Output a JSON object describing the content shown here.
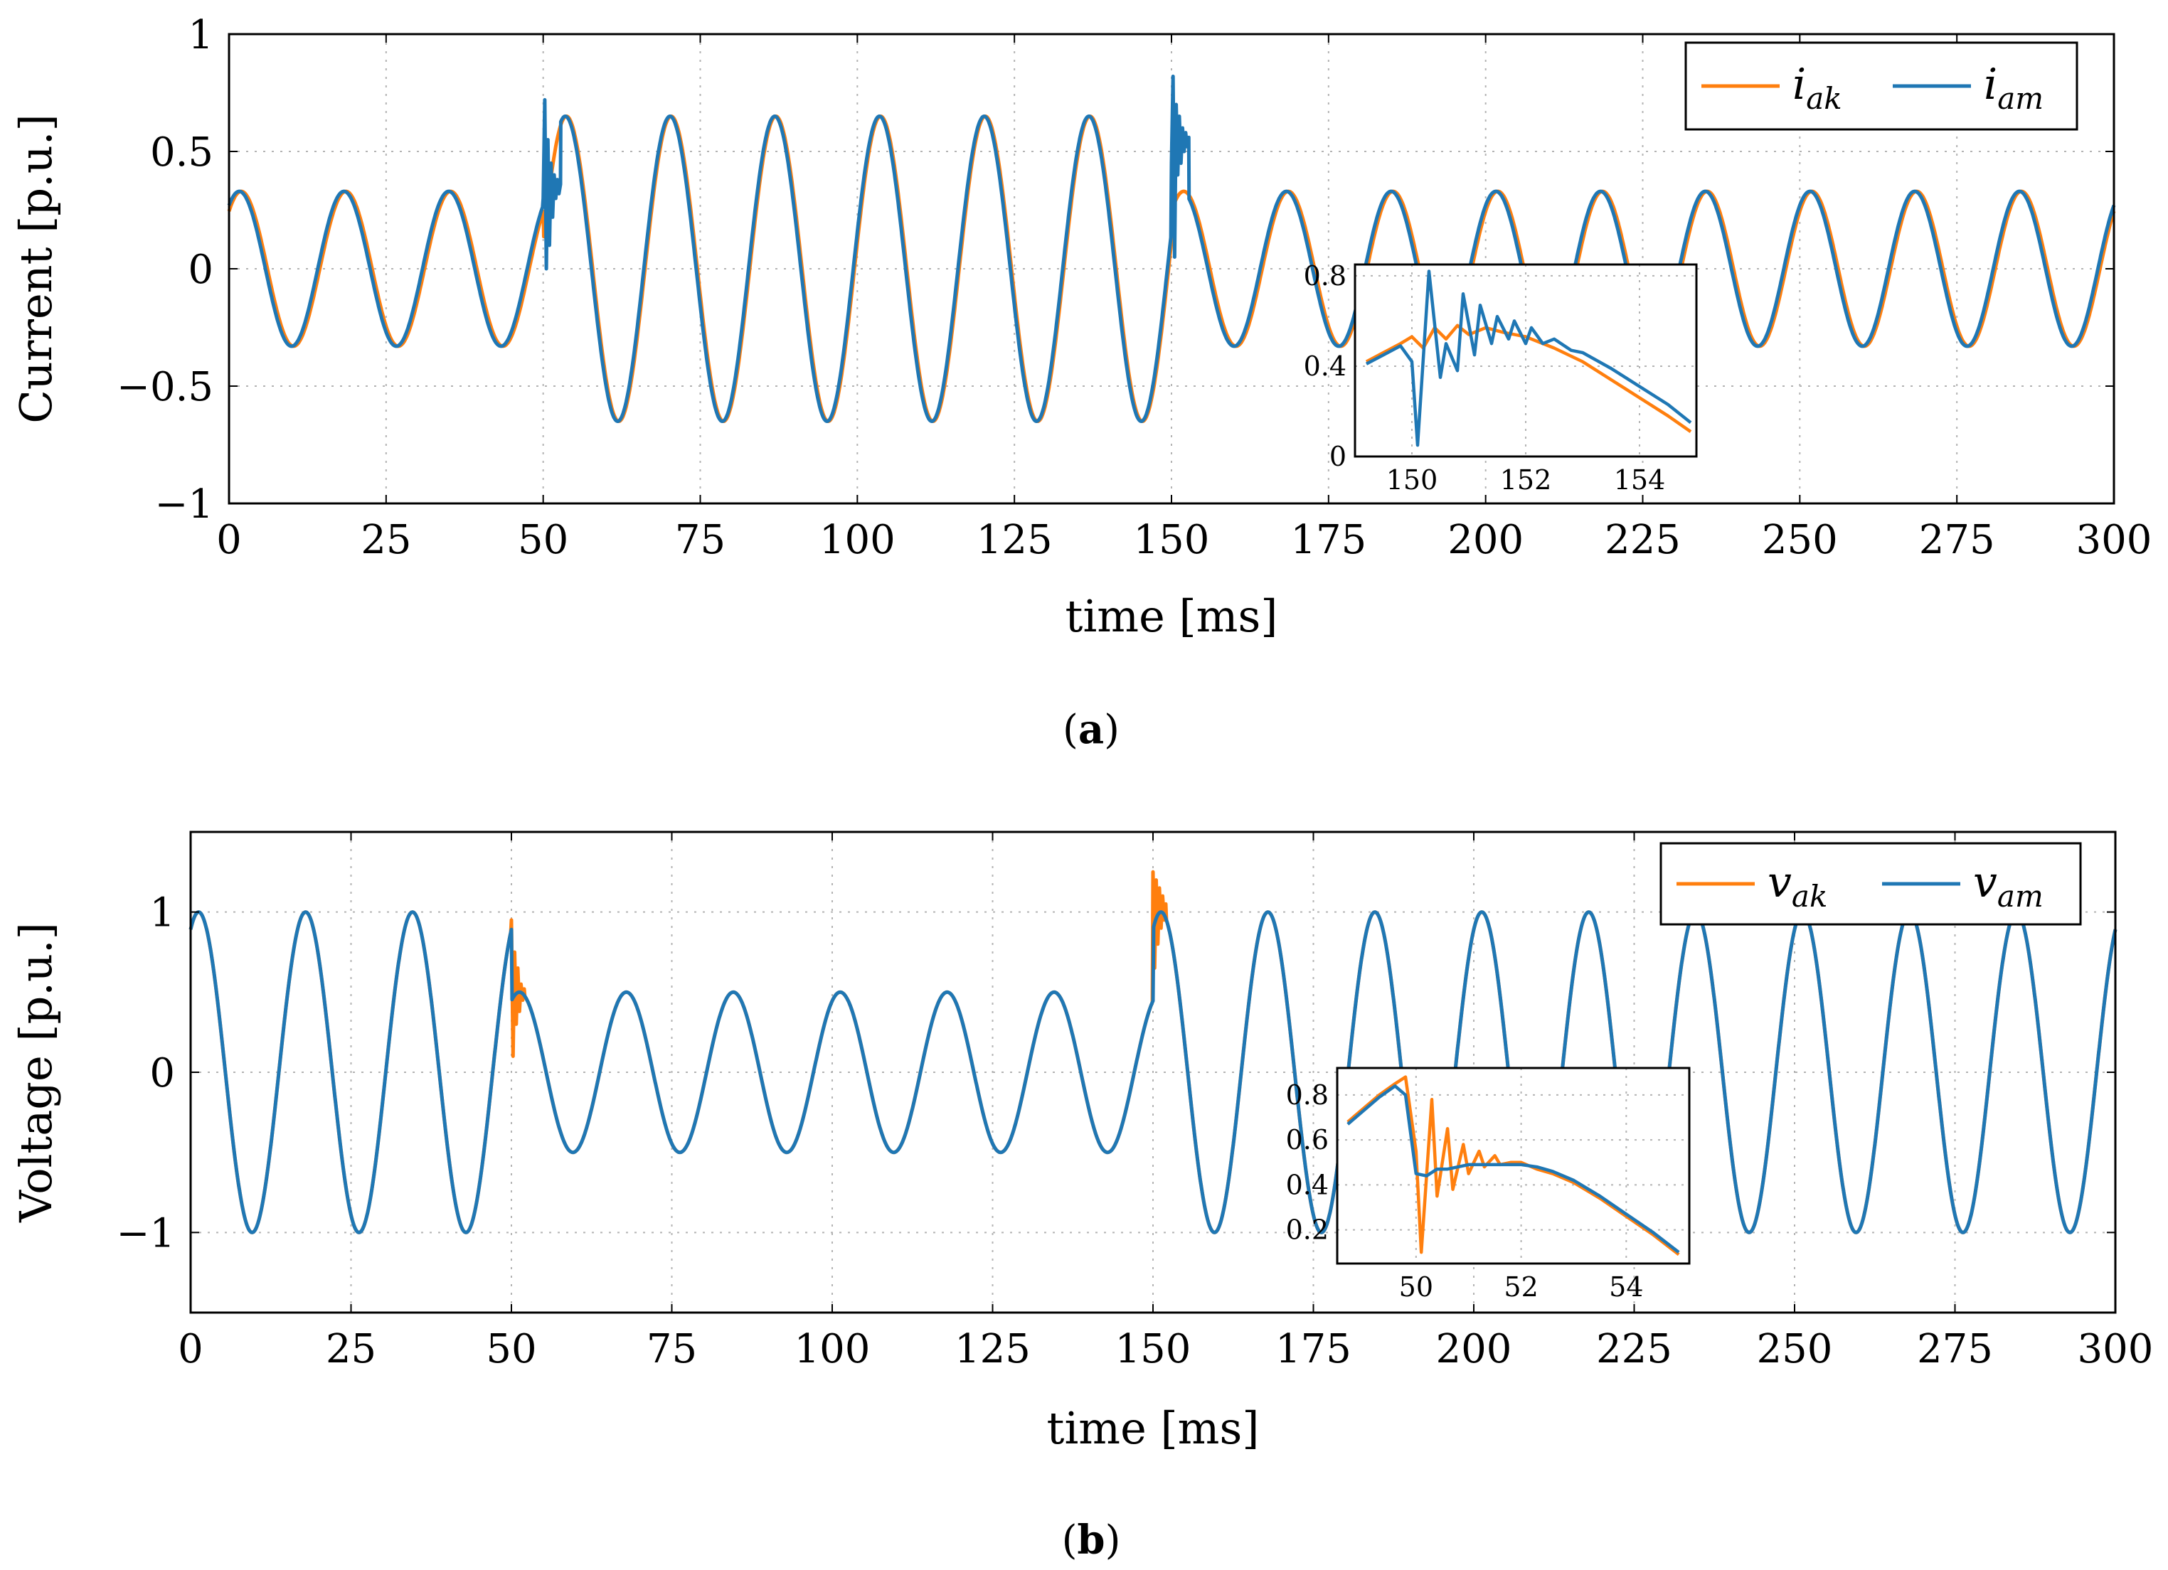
{
  "colors": {
    "orange": "#ff7f0e",
    "blue": "#1f77b4",
    "grid": "#b3b3b3"
  },
  "chart_data": [
    {
      "id": "a",
      "type": "line",
      "caption": {
        "open": "(",
        "letter": "a",
        "close": ")"
      },
      "xlabel": "time [ms]",
      "ylabel": "Current [p.u.]",
      "xlim": [
        0,
        300
      ],
      "ylim": [
        -1,
        1
      ],
      "xticks": [
        0,
        25,
        50,
        75,
        100,
        125,
        150,
        175,
        200,
        225,
        250,
        275,
        300
      ],
      "yticks": [
        -1,
        -0.5,
        0,
        0.5,
        1
      ],
      "ytick_labels": [
        "−1",
        "−0.5",
        "0",
        "0.5",
        "1"
      ],
      "grid": true,
      "legend_position": "top-right",
      "frequency_hz": 60,
      "series": [
        {
          "name": "i_ak",
          "label_main": "i",
          "label_sub": "ak",
          "color": "#ff7f0e",
          "segments": [
            {
              "t_start": 0,
              "t_end": 50,
              "amplitude": 0.33,
              "phase_deg": 48
            },
            {
              "t_start": 50,
              "t_end": 150,
              "amplitude": 0.65,
              "phase_deg": 10
            },
            {
              "t_start": 150,
              "t_end": 300,
              "amplitude": 0.33,
              "phase_deg": 48
            }
          ]
        },
        {
          "name": "i_am",
          "label_main": "i",
          "label_sub": "am",
          "color": "#1f77b4",
          "segments": [
            {
              "t_start": 0,
              "t_end": 50,
              "amplitude": 0.33,
              "phase_deg": 55
            },
            {
              "t_start": 50,
              "t_end": 150,
              "amplitude": 0.65,
              "phase_deg": 14
            },
            {
              "t_start": 150,
              "t_end": 300,
              "amplitude": 0.33,
              "phase_deg": 55
            }
          ],
          "transient_spikes": [
            {
              "t": 50,
              "values": [
                0.3,
                0.72,
                0.0,
                0.55,
                0.1,
                0.45,
                0.22,
                0.4,
                0.3,
                0.38,
                0.32,
                0.36
              ]
            },
            {
              "t": 150,
              "values": [
                0.45,
                0.82,
                0.05,
                0.7,
                0.4,
                0.65,
                0.45,
                0.6,
                0.5,
                0.58,
                0.52,
                0.56
              ]
            }
          ]
        }
      ],
      "inset": {
        "xlim": [
          149,
          155
        ],
        "ylim": [
          0,
          0.85
        ],
        "xticks": [
          150,
          152,
          154
        ],
        "yticks": [
          0,
          0.4,
          0.8
        ],
        "ytick_labels": [
          "0",
          "0.4",
          "0.8"
        ],
        "series": [
          {
            "name": "i_ak",
            "color": "#ff7f0e",
            "x": [
              149.2,
              149.5,
              149.8,
              150.0,
              150.2,
              150.4,
              150.6,
              150.8,
              151.0,
              151.3,
              151.6,
              152.0,
              152.5,
              153.0,
              153.5,
              154.0,
              154.5,
              154.9
            ],
            "y": [
              0.42,
              0.46,
              0.5,
              0.53,
              0.48,
              0.57,
              0.52,
              0.58,
              0.54,
              0.57,
              0.55,
              0.53,
              0.48,
              0.42,
              0.34,
              0.26,
              0.18,
              0.11
            ]
          },
          {
            "name": "i_am",
            "color": "#1f77b4",
            "x": [
              149.2,
              149.5,
              149.8,
              150.0,
              150.1,
              150.3,
              150.5,
              150.6,
              150.8,
              150.9,
              151.1,
              151.2,
              151.4,
              151.5,
              151.7,
              151.8,
              152.0,
              152.1,
              152.3,
              152.5,
              152.8,
              153.0,
              153.5,
              154.0,
              154.5,
              154.9
            ],
            "y": [
              0.41,
              0.45,
              0.49,
              0.42,
              0.05,
              0.82,
              0.35,
              0.5,
              0.38,
              0.72,
              0.45,
              0.67,
              0.5,
              0.62,
              0.52,
              0.6,
              0.5,
              0.57,
              0.5,
              0.52,
              0.47,
              0.46,
              0.39,
              0.31,
              0.23,
              0.15
            ]
          }
        ]
      }
    },
    {
      "id": "b",
      "type": "line",
      "caption": {
        "open": "(",
        "letter": "b",
        "close": ")"
      },
      "xlabel": "time [ms]",
      "ylabel": "Voltage [p.u.]",
      "xlim": [
        0,
        300
      ],
      "ylim": [
        -1.5,
        1.5
      ],
      "xticks": [
        0,
        25,
        50,
        75,
        100,
        125,
        150,
        175,
        200,
        225,
        250,
        275,
        300
      ],
      "yticks": [
        -1,
        0,
        1
      ],
      "ytick_labels": [
        "−1",
        "0",
        "1"
      ],
      "grid": true,
      "legend_position": "top-right",
      "frequency_hz": 60,
      "series": [
        {
          "name": "v_ak",
          "label_main": "v",
          "label_sub": "ak",
          "color": "#ff7f0e",
          "segments": [
            {
              "t_start": 0,
              "t_end": 50,
              "amplitude": 1.0,
              "phase_deg": 63
            },
            {
              "t_start": 50,
              "t_end": 150,
              "amplitude": 0.5,
              "phase_deg": 63
            },
            {
              "t_start": 150,
              "t_end": 300,
              "amplitude": 1.0,
              "phase_deg": 63
            }
          ],
          "transient_spikes": [
            {
              "t": 50,
              "values": [
                0.95,
                0.1,
                0.75,
                0.3,
                0.65,
                0.38,
                0.55,
                0.45,
                0.52
              ]
            },
            {
              "t": 150,
              "values": [
                1.25,
                0.65,
                1.2,
                0.8,
                1.15,
                0.9,
                1.1,
                0.95,
                1.05
              ]
            }
          ]
        },
        {
          "name": "v_am",
          "label_main": "v",
          "label_sub": "am",
          "color": "#1f77b4",
          "segments": [
            {
              "t_start": 0,
              "t_end": 50,
              "amplitude": 1.0,
              "phase_deg": 63
            },
            {
              "t_start": 50,
              "t_end": 150,
              "amplitude": 0.5,
              "phase_deg": 63
            },
            {
              "t_start": 150,
              "t_end": 300,
              "amplitude": 1.0,
              "phase_deg": 63
            }
          ]
        }
      ],
      "inset": {
        "xlim": [
          48.5,
          55.2
        ],
        "ylim": [
          0.05,
          0.92
        ],
        "xticks": [
          50,
          52,
          54
        ],
        "yticks": [
          0.2,
          0.4,
          0.6,
          0.8
        ],
        "ytick_labels": [
          "0.2",
          "0.4",
          "0.6",
          "0.8"
        ],
        "series": [
          {
            "name": "v_ak",
            "color": "#ff7f0e",
            "x": [
              48.7,
              49.0,
              49.3,
              49.6,
              49.8,
              50.0,
              50.1,
              50.3,
              50.4,
              50.6,
              50.7,
              50.9,
              51.0,
              51.2,
              51.3,
              51.5,
              51.6,
              51.8,
              52.0,
              52.3,
              52.6,
              53.0,
              53.5,
              54.0,
              54.5,
              55.0
            ],
            "y": [
              0.68,
              0.74,
              0.8,
              0.85,
              0.88,
              0.55,
              0.1,
              0.78,
              0.35,
              0.65,
              0.38,
              0.58,
              0.45,
              0.55,
              0.48,
              0.53,
              0.49,
              0.5,
              0.5,
              0.47,
              0.45,
              0.41,
              0.34,
              0.26,
              0.18,
              0.09
            ]
          },
          {
            "name": "v_am",
            "color": "#1f77b4",
            "x": [
              48.7,
              49.0,
              49.3,
              49.6,
              49.8,
              50.0,
              50.2,
              50.4,
              50.6,
              50.8,
              51.0,
              51.3,
              51.6,
              52.0,
              52.3,
              52.6,
              53.0,
              53.5,
              54.0,
              54.5,
              55.0
            ],
            "y": [
              0.67,
              0.73,
              0.79,
              0.84,
              0.8,
              0.45,
              0.44,
              0.47,
              0.47,
              0.48,
              0.49,
              0.49,
              0.49,
              0.49,
              0.48,
              0.46,
              0.42,
              0.35,
              0.27,
              0.19,
              0.1
            ]
          }
        ]
      }
    }
  ]
}
